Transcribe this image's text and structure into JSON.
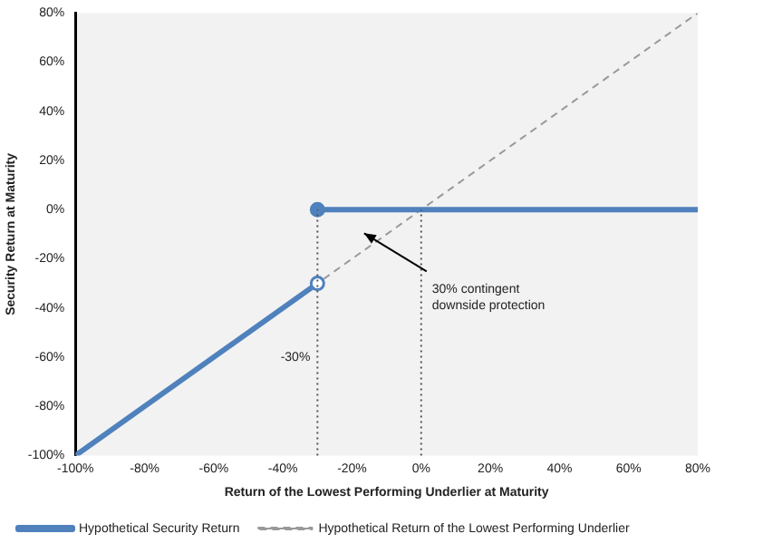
{
  "chart_data": {
    "type": "line",
    "xlabel": "Return of the Lowest Performing Underlier at Maturity",
    "ylabel": "Security Return at Maturity",
    "xlim": [
      -100,
      80
    ],
    "xticks": [
      {
        "value": -100,
        "label": "-100%"
      },
      {
        "value": -80,
        "label": "-80%"
      },
      {
        "value": -60,
        "label": "-60%"
      },
      {
        "value": -40,
        "label": "-40%"
      },
      {
        "value": -20,
        "label": "-20%"
      },
      {
        "value": 0,
        "label": "0%"
      },
      {
        "value": 20,
        "label": "20%"
      },
      {
        "value": 40,
        "label": "40%"
      },
      {
        "value": 60,
        "label": "60%"
      },
      {
        "value": 80,
        "label": "80%"
      }
    ],
    "ylim": [
      -100,
      80
    ],
    "yticks": [
      {
        "value": -100,
        "label": "-100%"
      },
      {
        "value": -80,
        "label": "-80%"
      },
      {
        "value": -60,
        "label": "-60%"
      },
      {
        "value": -40,
        "label": "-40%"
      },
      {
        "value": -20,
        "label": "-20%"
      },
      {
        "value": 0,
        "label": "0%"
      },
      {
        "value": 20,
        "label": "20%"
      },
      {
        "value": 40,
        "label": "40%"
      },
      {
        "value": 60,
        "label": "60%"
      },
      {
        "value": 80,
        "label": "80%"
      }
    ],
    "series": [
      {
        "name": "Hypothetical Security Return",
        "color": "#4f81bd",
        "x": [
          -100,
          -30
        ],
        "values": [
          -100,
          -30
        ],
        "marker": "circle",
        "line_style": "solid"
      },
      {
        "color": "#4f81bd",
        "x": [
          -30,
          80
        ],
        "values": [
          0,
          0
        ],
        "marker": "circle",
        "line_style": "solid"
      },
      {
        "name": "Hypothetical Return of the Lowest Performing Underlier",
        "color": "#999999",
        "x": [
          -100,
          80
        ],
        "values": [
          -100,
          80
        ],
        "line_style": "dashed"
      }
    ],
    "ref_lines": [
      {
        "axis": "x",
        "value": -30,
        "label": "-30%",
        "line_style": "dotted",
        "color": "#555555"
      },
      {
        "axis": "x",
        "value": 0,
        "line_style": "dotted",
        "color": "#555555"
      }
    ],
    "annotations": [
      "30% contingent downside protection"
    ],
    "legend": "bottom",
    "grid": false
  }
}
